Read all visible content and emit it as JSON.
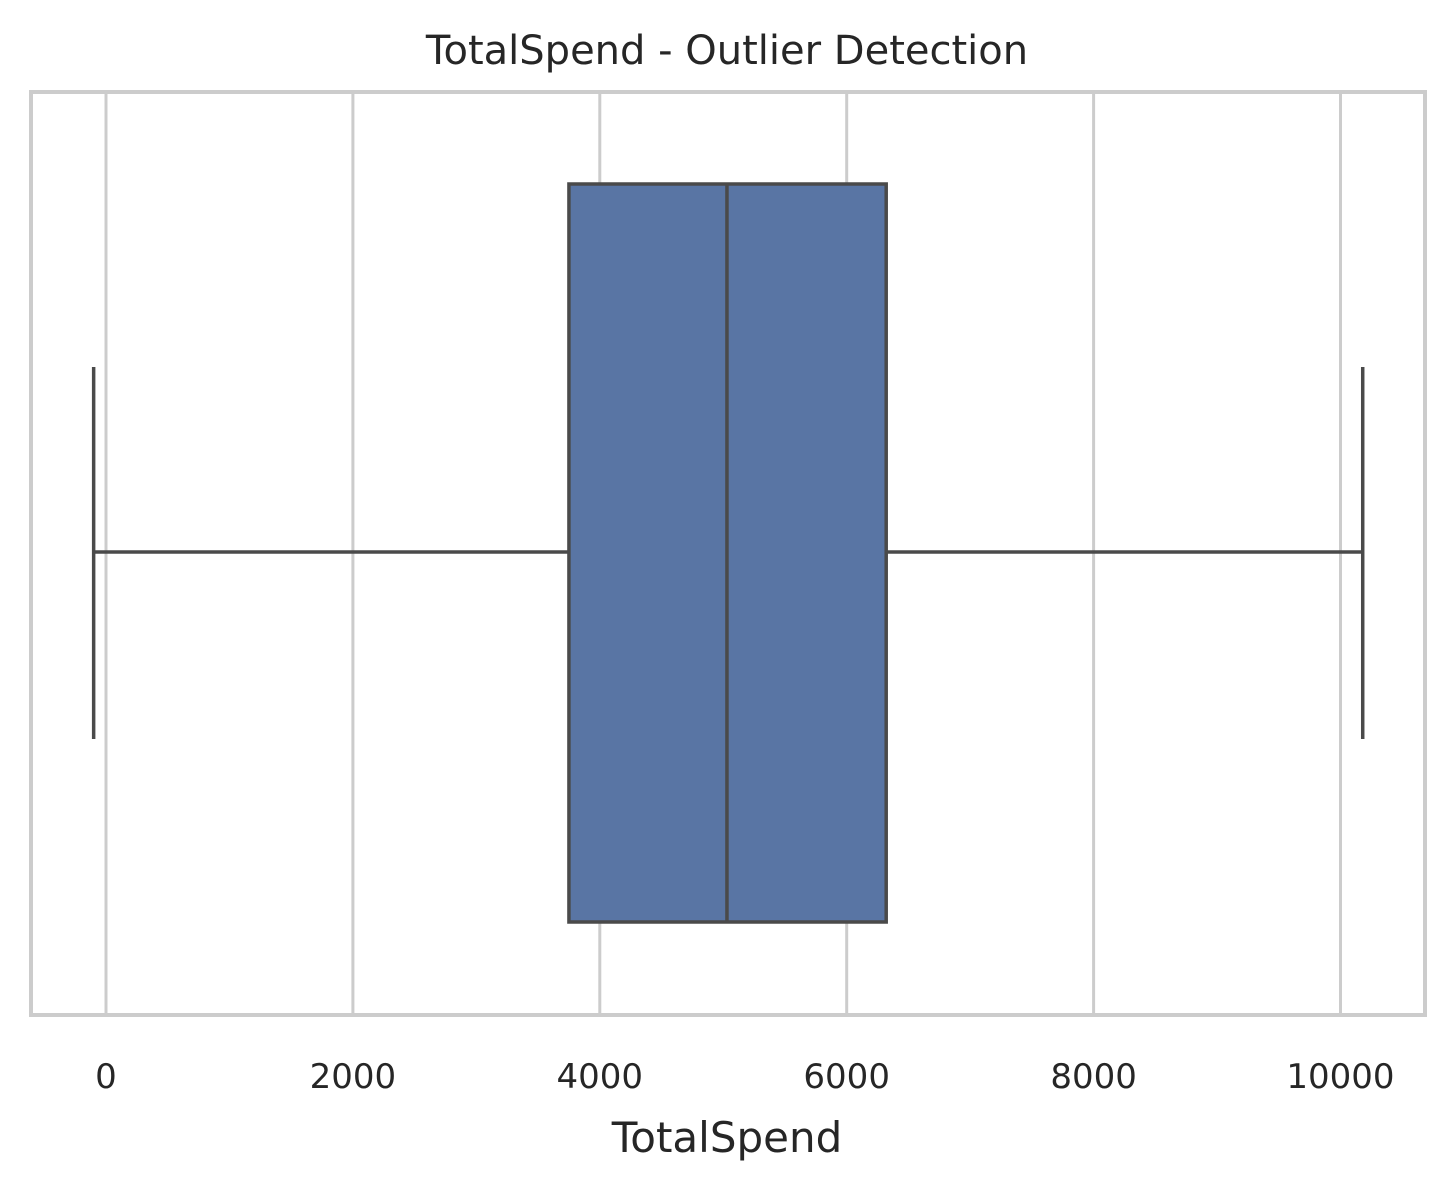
{
  "chart_data": {
    "type": "box",
    "title": "TotalSpend - Outlier Detection",
    "xlabel": "TotalSpend",
    "ylabel": "",
    "orientation": "horizontal",
    "xlim": [
      -600,
      10700
    ],
    "xticks": [
      0,
      2000,
      4000,
      6000,
      8000,
      10000
    ],
    "xtick_labels": [
      "0",
      "2000",
      "4000",
      "6000",
      "8000",
      "10000"
    ],
    "grid": "vertical",
    "series": [
      {
        "whisker_low": -100,
        "q1": 3750,
        "median": 5030,
        "q3": 6320,
        "whisker_high": 10180,
        "outliers": []
      }
    ],
    "colors": {
      "box_fill": "#5975a4",
      "line": "#4a4a4a",
      "grid": "#cccccc",
      "frame": "#cccccc",
      "text": "#262626"
    }
  }
}
